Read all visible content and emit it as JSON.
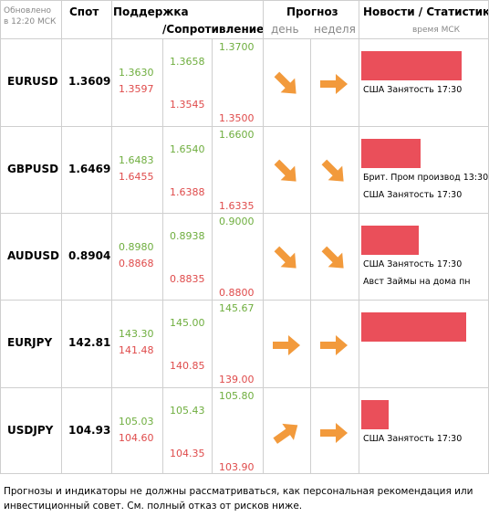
{
  "header": {
    "updated": "Обновлено в 12:20 МСК",
    "spot": "Спот",
    "support": "Поддержка",
    "resistance": "/Сопротивление",
    "forecast": "Прогноз",
    "day": "день",
    "week": "неделя",
    "news": "Новости / Статистика",
    "time": "время МСК"
  },
  "rows": [
    {
      "pair": "EURUSD",
      "spot": "1.3609",
      "s1": [
        "1.3630",
        "1.3597"
      ],
      "s2": [
        "1.3658",
        "1.3545"
      ],
      "s3": [
        "1.3700",
        "1.3500"
      ],
      "news": [
        "США Занятость 17:30"
      ]
    },
    {
      "pair": "GBPUSD",
      "spot": "1.6469",
      "s1": [
        "1.6483",
        "1.6455"
      ],
      "s2": [
        "1.6540",
        "1.6388"
      ],
      "s3": [
        "1.6600",
        "1.6335"
      ],
      "news": [
        "Брит. Пром производ 13:30",
        "США Занятость 17:30"
      ]
    },
    {
      "pair": "AUDUSD",
      "spot": "0.8904",
      "s1": [
        "0.8980",
        "0.8868"
      ],
      "s2": [
        "0.8938",
        "0.8835"
      ],
      "s3": [
        "0.9000",
        "0.8800"
      ],
      "news": [
        "США Занятость 17:30",
        "Авст Займы на дома пн"
      ]
    },
    {
      "pair": "EURJPY",
      "spot": "142.81",
      "s1": [
        "143.30",
        "141.48"
      ],
      "s2": [
        "145.00",
        "140.85"
      ],
      "s3": [
        "145.67",
        "139.00"
      ],
      "news": []
    },
    {
      "pair": "USDJPY",
      "spot": "104.93",
      "s1": [
        "105.03",
        "104.60"
      ],
      "s2": [
        "105.43",
        "104.35"
      ],
      "s3": [
        "105.80",
        "103.90"
      ],
      "news": [
        "США Занятость 17:30"
      ]
    }
  ],
  "footer": "Прогнозы и индикаторы не должны рассматриваться, как персональная рекомендация или инвестиционный совет. См. полный отказ от рисков ниже."
}
